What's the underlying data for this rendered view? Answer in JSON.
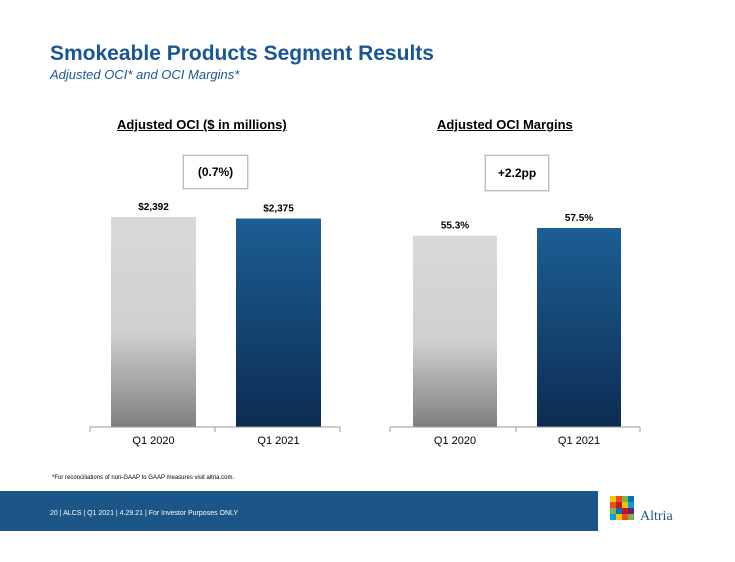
{
  "slide": {
    "title": "Smokeable Products Segment Results",
    "subtitle": "Adjusted OCI* and OCI Margins*",
    "footnote": "*For reconciliations of non-GAAP to GAAP measures visit altria.com.",
    "footer_text": "20 | ALCS | Q1 2021 | 4.29.21 | For Investor Purposes ONLY",
    "logo_text": "Altria"
  },
  "colors": {
    "accent": "#1a5694",
    "bar_prior_top": "#d9d9d9",
    "bar_prior_bottom": "#7f7f7f",
    "bar_current_top": "#1c5e94",
    "bar_current_bottom": "#0d2c52",
    "footer": "#1c5587"
  },
  "chart_data": [
    {
      "type": "bar",
      "title": "Adjusted OCI ($ in millions)",
      "change_label": "(0.7%)",
      "categories": [
        "Q1 2020",
        "Q1 2021"
      ],
      "values": [
        2392,
        2375
      ],
      "data_labels": [
        "$2,392",
        "$2,375"
      ],
      "ylim": [
        0,
        2392
      ]
    },
    {
      "type": "bar",
      "title": "Adjusted OCI Margins",
      "change_label": "+2.2pp",
      "categories": [
        "Q1 2020",
        "Q1 2021"
      ],
      "values": [
        55.3,
        57.5
      ],
      "data_labels": [
        "55.3%",
        "57.5%"
      ],
      "ylim": [
        0,
        57.5
      ]
    }
  ]
}
